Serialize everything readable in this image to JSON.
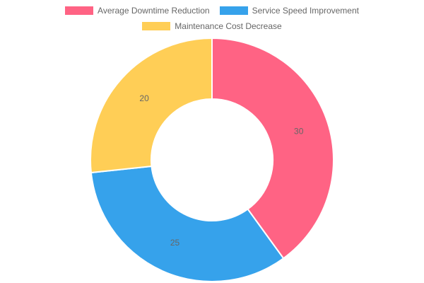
{
  "chart_data": {
    "type": "pie",
    "variant": "doughnut",
    "title": "",
    "categories": [
      "Average Downtime Reduction",
      "Service Speed Improvement",
      "Maintenance Cost Decrease"
    ],
    "values": [
      30,
      25,
      20
    ],
    "colors": [
      "#ff6384",
      "#36a2eb",
      "#ffce56"
    ],
    "legend_position": "top",
    "start_angle_deg": -90
  }
}
